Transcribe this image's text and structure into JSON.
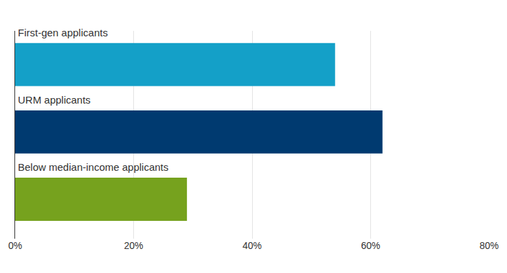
{
  "chart_data": {
    "type": "bar",
    "orientation": "horizontal",
    "categories": [
      "First-gen applicants",
      "URM applicants",
      "Below median-income applicants"
    ],
    "values": [
      54,
      62,
      29
    ],
    "colors": [
      "#14a0c8",
      "#003a70",
      "#76a21e"
    ],
    "xlim": [
      0,
      80
    ],
    "xticks": [
      {
        "value": 0,
        "label": "0%"
      },
      {
        "value": 20,
        "label": "20%"
      },
      {
        "value": 40,
        "label": "40%"
      },
      {
        "value": 60,
        "label": "60%"
      },
      {
        "value": 80,
        "label": "80%"
      }
    ],
    "grid": true,
    "tick_labels": "x"
  }
}
